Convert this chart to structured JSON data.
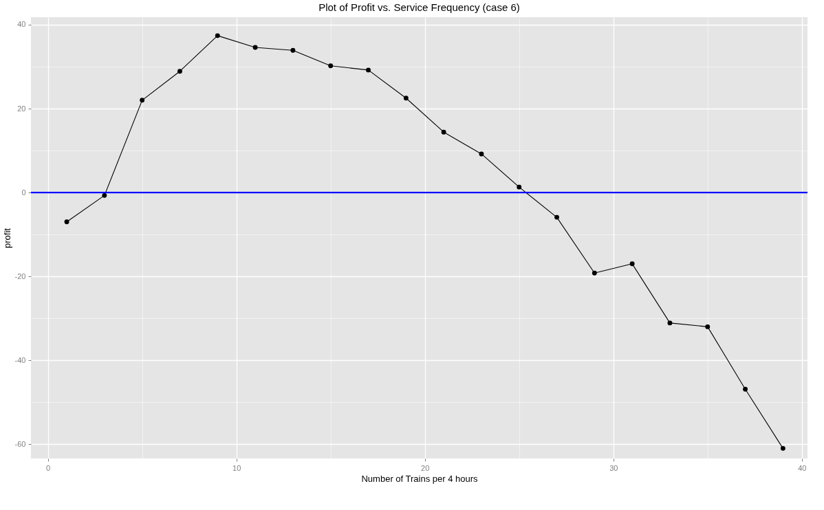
{
  "chart_data": {
    "type": "line",
    "title": "Plot of Profit vs. Service Frequency (case 6)",
    "xlabel": "Number of Trains per 4 hours",
    "ylabel": "profit",
    "x": [
      1,
      3,
      5,
      7,
      9,
      11,
      13,
      15,
      17,
      19,
      21,
      23,
      25,
      27,
      29,
      31,
      33,
      35,
      37,
      39
    ],
    "series": [
      {
        "color": "#000000",
        "values": [
          -7.0,
          -0.7,
          22.0,
          28.9,
          37.4,
          34.6,
          33.9,
          30.2,
          29.2,
          22.5,
          14.4,
          9.2,
          1.3,
          -5.9,
          -19.2,
          -17.0,
          -31.1,
          -32.0,
          -46.9,
          -61.0
        ]
      }
    ],
    "marker": "circle",
    "line_style": "solid",
    "grid": true,
    "xlim": [
      -0.9,
      40.3
    ],
    "xticks": [
      0,
      {
        "value": 5,
        "label": null
      },
      10,
      {
        "value": 15,
        "label": null
      },
      20,
      {
        "value": 25,
        "label": null
      },
      30,
      {
        "value": 35,
        "label": null
      },
      40
    ],
    "ylim": [
      -63.4,
      41.8
    ],
    "yticks": [
      -60,
      {
        "value": -50,
        "label": null
      },
      -40,
      {
        "value": -30,
        "label": null
      },
      -20,
      {
        "value": -10,
        "label": null
      },
      0,
      {
        "value": 10,
        "label": null
      },
      20,
      {
        "value": 30,
        "label": null
      },
      40
    ],
    "ref_lines": [
      {
        "axis": "y",
        "value": 0,
        "color": "#0000ff"
      }
    ]
  }
}
